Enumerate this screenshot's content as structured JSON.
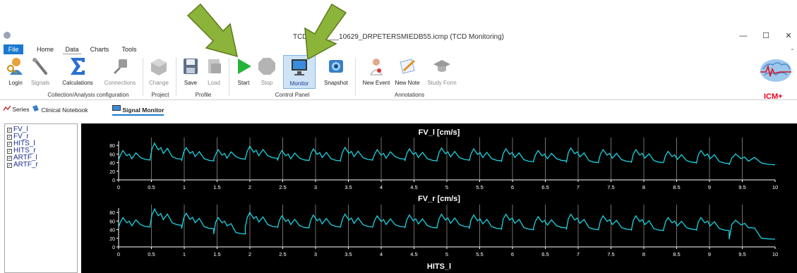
{
  "window": {
    "title": "TCD_2021___10629_DRPETERSMIEDB55.icmp  (TCD  Monitoring)",
    "minimize_glyph": "—",
    "maximize_glyph": "☐",
    "close_glyph": "✕"
  },
  "menu_tabs": [
    {
      "label": "File",
      "active": false
    },
    {
      "label": "Home",
      "active": false
    },
    {
      "label": "Data",
      "active": true
    },
    {
      "label": "Charts",
      "active": false
    },
    {
      "label": "Tools",
      "active": false
    }
  ],
  "ribbon": {
    "buttons": [
      {
        "label": "Login",
        "icon": "key-user-icon",
        "enabled": true
      },
      {
        "label": "Signals",
        "icon": "probe-icon",
        "enabled": false
      },
      {
        "label": "Calculations",
        "icon": "sigma-icon",
        "enabled": true
      },
      {
        "label": "Connections",
        "icon": "plug-icon",
        "enabled": false
      },
      {
        "label": "Change",
        "icon": "cube-icon",
        "enabled": false
      },
      {
        "label": "Save",
        "icon": "floppy-icon",
        "enabled": true
      },
      {
        "label": "Load",
        "icon": "load-icon",
        "enabled": false
      },
      {
        "label": "Start",
        "icon": "play-icon",
        "enabled": true
      },
      {
        "label": "Stop",
        "icon": "stop-sign-icon",
        "enabled": false
      },
      {
        "label": "Monitor",
        "icon": "monitor-icon",
        "enabled": true,
        "selected": true
      },
      {
        "label": "Snapshot",
        "icon": "camera-icon",
        "enabled": true
      },
      {
        "label": "New Event",
        "icon": "event-icon",
        "enabled": true
      },
      {
        "label": "New Note",
        "icon": "note-icon",
        "enabled": true
      },
      {
        "label": "Study Form",
        "icon": "graduation-cap-icon",
        "enabled": false
      }
    ],
    "groups": [
      {
        "label": "Collection/Analysis configuration"
      },
      {
        "label": "Project"
      },
      {
        "label": "Profile"
      },
      {
        "label": "Control Panel"
      },
      {
        "label": "Annotations"
      }
    ]
  },
  "logo": {
    "text": "ICM+",
    "color": "#e8001c"
  },
  "sub_tabs": [
    {
      "label": "Series",
      "icon": "series-icon",
      "active": false
    },
    {
      "label": "Clinical Notebook",
      "icon": "notebook-icon",
      "active": false
    },
    {
      "label": "Signal Monitor",
      "icon": "monitor-icon",
      "active": true
    }
  ],
  "signals": [
    "FV_l",
    "FV_r",
    "HITS_l",
    "HITS_r",
    "ARTF_l",
    "ARTF_r"
  ],
  "colors": {
    "accent": "#1a7ad1",
    "trace": "#19d3df",
    "arrow": "#8db43a"
  },
  "chart_data": [
    {
      "type": "line",
      "title": "FV_l [cm/s]",
      "xlim": [
        0,
        10
      ],
      "ylim": [
        0,
        90
      ],
      "x_ticks": [
        "0",
        "0.5",
        "1",
        "1.5",
        "2",
        "2.5",
        "3",
        "3.5",
        "4",
        "4.5",
        "5",
        "5.5",
        "6",
        "6.5",
        "7",
        "7.5",
        "8",
        "8.5",
        "9",
        "9.5",
        "10"
      ],
      "y_ticks": [
        "0",
        "20",
        "40",
        "60",
        "80"
      ],
      "beats": [
        0.0,
        0.48,
        0.96,
        1.45,
        1.93,
        2.42,
        2.9,
        3.38,
        3.87,
        4.36,
        4.85,
        5.34,
        5.83,
        6.32,
        6.82,
        7.31,
        7.81,
        8.3,
        8.8,
        9.3
      ],
      "beat_peaks": [
        68,
        85,
        75,
        70,
        78,
        68,
        72,
        75,
        70,
        72,
        74,
        72,
        72,
        68,
        74,
        70,
        70,
        66,
        68,
        60
      ],
      "beat_troughs": [
        46,
        48,
        44,
        48,
        50,
        45,
        44,
        46,
        48,
        44,
        46,
        44,
        42,
        44,
        40,
        42,
        40,
        40,
        38,
        35
      ]
    },
    {
      "type": "line",
      "title": "FV_r [cm/s]",
      "xlim": [
        0,
        10
      ],
      "ylim": [
        0,
        90
      ],
      "x_ticks": [
        "0",
        "0.5",
        "1",
        "1.5",
        "2",
        "2.5",
        "3",
        "3.5",
        "4",
        "4.5",
        "5",
        "5.5",
        "6",
        "6.5",
        "7",
        "7.5",
        "8",
        "8.5",
        "9",
        "9.5",
        "10"
      ],
      "y_ticks": [
        "0",
        "20",
        "40",
        "60",
        "80"
      ],
      "beats": [
        0.0,
        0.48,
        0.96,
        1.45,
        1.93,
        2.42,
        2.9,
        3.38,
        3.87,
        4.36,
        4.85,
        5.34,
        5.83,
        6.32,
        6.82,
        7.31,
        7.81,
        8.3,
        8.8,
        9.3
      ],
      "beat_peaks": [
        68,
        88,
        78,
        68,
        80,
        72,
        74,
        76,
        72,
        74,
        76,
        74,
        76,
        70,
        76,
        72,
        72,
        68,
        68,
        62
      ],
      "beat_troughs": [
        46,
        50,
        42,
        30,
        46,
        44,
        46,
        46,
        46,
        44,
        46,
        42,
        40,
        44,
        40,
        40,
        38,
        40,
        38,
        18
      ]
    },
    {
      "type": "line",
      "title": "HITS_l"
    }
  ]
}
